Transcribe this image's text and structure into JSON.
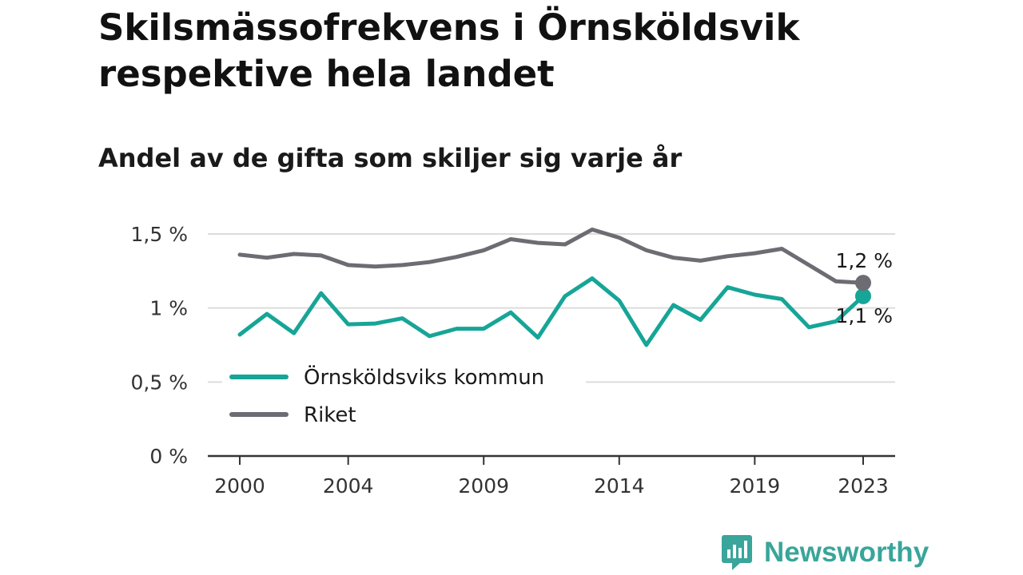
{
  "title": "Skilsmässofrekvens i Örnsköldsvik respektive hela landet",
  "subtitle": "Andel av de gifta som skiljer sig varje år",
  "brand": {
    "name": "Newsworthy",
    "icon": "bar-chart-speech-bubble-icon",
    "color": "#3aa59a"
  },
  "chart_data": {
    "type": "line",
    "x": [
      2000,
      2001,
      2002,
      2003,
      2004,
      2005,
      2006,
      2007,
      2008,
      2009,
      2010,
      2011,
      2012,
      2013,
      2014,
      2015,
      2016,
      2017,
      2018,
      2019,
      2020,
      2021,
      2022,
      2023
    ],
    "x_ticks": [
      {
        "value": 2000,
        "label": "2000"
      },
      {
        "value": 2004,
        "label": "2004"
      },
      {
        "value": 2009,
        "label": "2009"
      },
      {
        "value": 2014,
        "label": "2014"
      },
      {
        "value": 2019,
        "label": "2019"
      },
      {
        "value": 2023,
        "label": "2023"
      }
    ],
    "y_ticks": [
      {
        "value": 0,
        "label": "0 %"
      },
      {
        "value": 0.5,
        "label": "0,5 %"
      },
      {
        "value": 1,
        "label": "1 %"
      },
      {
        "value": 1.5,
        "label": "1,5 %"
      }
    ],
    "ylim": [
      0,
      1.5
    ],
    "grid": true,
    "legend_position": "bottom-left",
    "series": [
      {
        "name": "Örnsköldsviks kommun",
        "color": "#16a597",
        "values": [
          0.82,
          0.96,
          0.83,
          1.1,
          0.89,
          0.895,
          0.93,
          0.81,
          0.86,
          0.86,
          0.97,
          0.8,
          1.08,
          1.2,
          1.05,
          0.75,
          1.02,
          0.92,
          1.14,
          1.09,
          1.06,
          0.87,
          0.91,
          1.08
        ],
        "end_label": "1,1 %"
      },
      {
        "name": "Riket",
        "color": "#6e6c73",
        "values": [
          1.36,
          1.34,
          1.365,
          1.355,
          1.29,
          1.28,
          1.29,
          1.31,
          1.345,
          1.39,
          1.465,
          1.44,
          1.43,
          1.53,
          1.475,
          1.39,
          1.34,
          1.32,
          1.35,
          1.37,
          1.4,
          1.29,
          1.18,
          1.17
        ],
        "end_label": "1,2 %"
      }
    ]
  }
}
